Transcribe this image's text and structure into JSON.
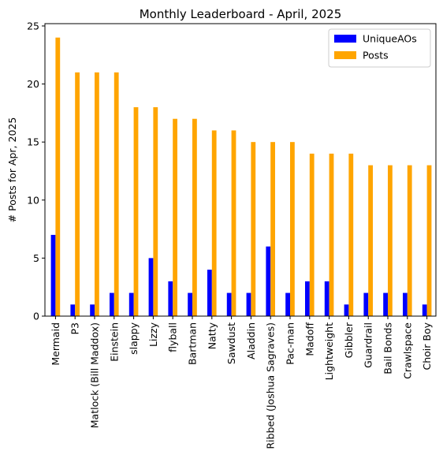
{
  "chart_data": {
    "type": "bar",
    "title": "Monthly Leaderboard - April, 2025",
    "xlabel": "",
    "ylabel": "# Posts for Apr, 2025",
    "ylim": [
      0,
      25.2
    ],
    "yticks": [
      0,
      5,
      10,
      15,
      20,
      25
    ],
    "grid": false,
    "legend_position": "top-right",
    "categories": [
      "Mermaid",
      "P3",
      "Matlock (Bill Maddox)",
      "Einstein",
      "slappy",
      "Lizzy",
      "flyball",
      "Bartman",
      "Natty",
      "Sawdust",
      "Aladdin",
      "Ribbed (Joshua Sagraves)",
      "Pac-man",
      "Madoff",
      "Lightweight",
      "Gibbler",
      "Guardrail",
      "Bail Bonds",
      "Crawlspace",
      "Choir Boy"
    ],
    "series": [
      {
        "name": "UniqueAOs",
        "color": "#0000ff",
        "values": [
          7,
          1,
          1,
          2,
          2,
          5,
          3,
          2,
          4,
          2,
          2,
          6,
          2,
          3,
          3,
          1,
          2,
          2,
          2,
          1
        ]
      },
      {
        "name": "Posts",
        "color": "#ffa500",
        "values": [
          24,
          21,
          21,
          21,
          18,
          18,
          17,
          17,
          16,
          16,
          15,
          15,
          15,
          14,
          14,
          14,
          13,
          13,
          13,
          13
        ]
      }
    ]
  }
}
